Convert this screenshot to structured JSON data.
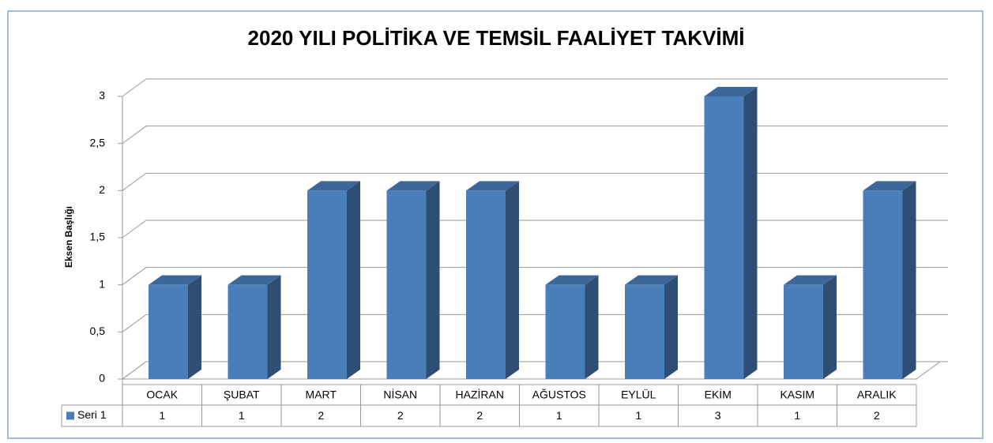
{
  "chart_data": {
    "type": "bar3d",
    "title": "2020 YILI POLİTİKA VE TEMSİL FAALİYET TAKVİMİ",
    "y_label": "Eksen Başlığı",
    "categories": [
      "OCAK",
      "ŞUBAT",
      "MART",
      "NİSAN",
      "HAZİRAN",
      "AĞUSTOS",
      "EYLÜL",
      "EKİM",
      "KASIM",
      "ARALIK"
    ],
    "series": [
      {
        "name": "Seri 1",
        "color": "#4a7ebb",
        "values": [
          1,
          1,
          2,
          2,
          2,
          1,
          1,
          3,
          1,
          2
        ]
      }
    ],
    "ylim": [
      0,
      3
    ],
    "yticks": [
      0,
      {
        "value": 0.5,
        "label": "0,5"
      },
      1,
      {
        "value": 1.5,
        "label": "1,5"
      },
      2,
      {
        "value": 2.5,
        "label": "2,5"
      },
      3
    ],
    "grid": true
  }
}
